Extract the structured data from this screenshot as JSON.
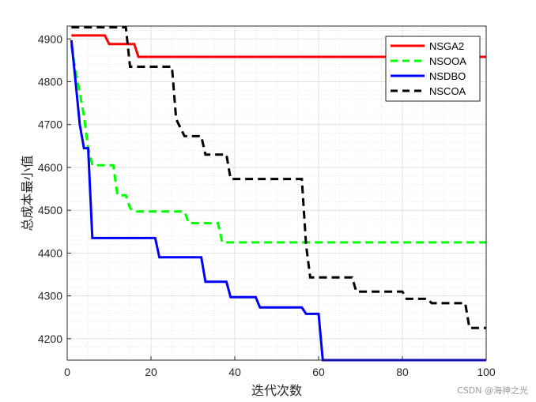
{
  "chart_data": {
    "type": "line",
    "title": "",
    "xlabel": "迭代次数",
    "ylabel": "总成本最小值",
    "xlim": [
      0,
      100
    ],
    "ylim": [
      4150,
      4930
    ],
    "xticks": [
      0,
      20,
      40,
      60,
      80,
      100
    ],
    "yticks": [
      4200,
      4300,
      4400,
      4500,
      4600,
      4700,
      4800,
      4900
    ],
    "grid": true,
    "legend_position": "top-right",
    "series": [
      {
        "name": "NSGA2",
        "color": "#ff0000",
        "dash": "solid",
        "points": [
          [
            1,
            4908
          ],
          [
            9,
            4908
          ],
          [
            10,
            4888
          ],
          [
            16,
            4888
          ],
          [
            17,
            4858
          ],
          [
            100,
            4858
          ]
        ]
      },
      {
        "name": "NSOOA",
        "color": "#00ff00",
        "dash": "dashed",
        "points": [
          [
            1,
            4885
          ],
          [
            2,
            4825
          ],
          [
            3,
            4775
          ],
          [
            4,
            4720
          ],
          [
            5,
            4645
          ],
          [
            6,
            4605
          ],
          [
            11,
            4605
          ],
          [
            12,
            4535
          ],
          [
            14,
            4535
          ],
          [
            15,
            4505
          ],
          [
            16,
            4497
          ],
          [
            28,
            4497
          ],
          [
            29,
            4470
          ],
          [
            36,
            4470
          ],
          [
            37,
            4425
          ],
          [
            100,
            4425
          ]
        ]
      },
      {
        "name": "NSDBO",
        "color": "#0000ff",
        "dash": "solid",
        "points": [
          [
            1,
            4897
          ],
          [
            2,
            4800
          ],
          [
            3,
            4700
          ],
          [
            4,
            4645
          ],
          [
            5,
            4645
          ],
          [
            6,
            4435
          ],
          [
            21,
            4435
          ],
          [
            22,
            4390
          ],
          [
            32,
            4390
          ],
          [
            33,
            4333
          ],
          [
            38,
            4333
          ],
          [
            39,
            4297
          ],
          [
            45,
            4297
          ],
          [
            46,
            4273
          ],
          [
            56,
            4273
          ],
          [
            57,
            4258
          ],
          [
            60,
            4258
          ],
          [
            61,
            4150
          ],
          [
            100,
            4150
          ]
        ]
      },
      {
        "name": "NSCOA",
        "color": "#000000",
        "dash": "dashed",
        "points": [
          [
            1,
            4927
          ],
          [
            14,
            4927
          ],
          [
            15,
            4835
          ],
          [
            25,
            4835
          ],
          [
            26,
            4713
          ],
          [
            28,
            4673
          ],
          [
            32,
            4673
          ],
          [
            33,
            4630
          ],
          [
            38,
            4630
          ],
          [
            39,
            4573
          ],
          [
            56,
            4573
          ],
          [
            57,
            4420
          ],
          [
            58,
            4343
          ],
          [
            68,
            4343
          ],
          [
            69,
            4310
          ],
          [
            80,
            4310
          ],
          [
            81,
            4293
          ],
          [
            86,
            4293
          ],
          [
            87,
            4283
          ],
          [
            95,
            4283
          ],
          [
            96,
            4225
          ],
          [
            100,
            4225
          ]
        ]
      }
    ]
  },
  "watermark": "CSDN @海神之光"
}
